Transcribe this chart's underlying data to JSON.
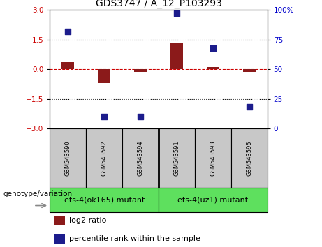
{
  "title": "GDS3747 / A_12_P103293",
  "samples": [
    "GSM543590",
    "GSM543592",
    "GSM543594",
    "GSM543591",
    "GSM543593",
    "GSM543595"
  ],
  "log2_ratio": [
    0.35,
    -0.7,
    -0.12,
    1.35,
    0.12,
    -0.12
  ],
  "percentile_rank": [
    82,
    10,
    10,
    97,
    68,
    18
  ],
  "ylim_left": [
    -3,
    3
  ],
  "ylim_right": [
    0,
    100
  ],
  "yticks_left": [
    -3,
    -1.5,
    0,
    1.5,
    3
  ],
  "yticks_right": [
    0,
    25,
    50,
    75,
    100
  ],
  "hlines": [
    -1.5,
    1.5
  ],
  "zero_line": 0,
  "bar_color": "#8B1A1A",
  "dot_color": "#1C1C8C",
  "bar_width": 0.35,
  "dot_size": 40,
  "groups": [
    {
      "label": "ets-4(ok165) mutant",
      "color": "#5EE05E"
    },
    {
      "label": "ets-4(uz1) mutant",
      "color": "#5EE05E"
    }
  ],
  "legend_items": [
    {
      "color": "#8B1A1A",
      "label": "log2 ratio"
    },
    {
      "color": "#1C1C8C",
      "label": "percentile rank within the sample"
    }
  ],
  "genotype_label": "genotype/variation",
  "bg_color": "#FFFFFF",
  "plot_bg": "#FFFFFF",
  "tick_label_color_left": "#CC0000",
  "tick_label_color_right": "#0000CC",
  "sample_box_color": "#C8C8C8",
  "title_fontsize": 10,
  "tick_fontsize": 7.5,
  "sample_fontsize": 6,
  "group_fontsize": 8,
  "legend_fontsize": 8,
  "geno_fontsize": 7.5
}
